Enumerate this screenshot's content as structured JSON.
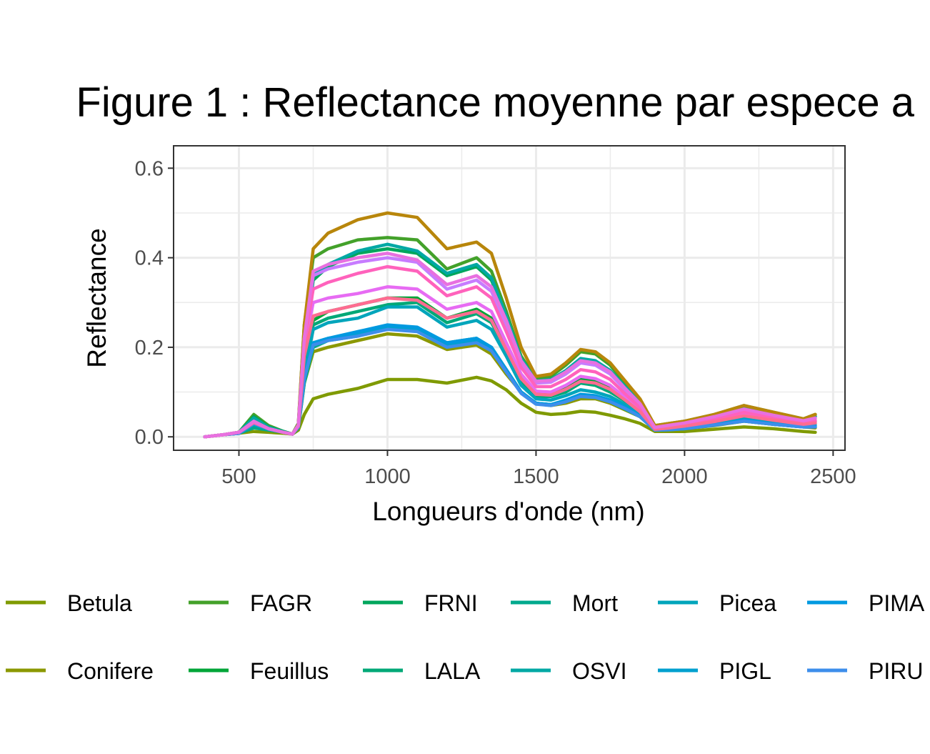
{
  "chart_data": {
    "type": "line",
    "title": "Figure 1 : Reflectance moyenne par espece a",
    "xlabel": "Longueurs d'onde (nm)",
    "ylabel": "Reflectance",
    "xlim": [
      280,
      2540
    ],
    "ylim": [
      -0.03,
      0.65
    ],
    "xticks": [
      500,
      1000,
      1500,
      2000,
      2500
    ],
    "xtick_labels": [
      "500",
      "1000",
      "1500",
      "2000",
      "2500"
    ],
    "yticks": [
      0.0,
      0.2,
      0.4,
      0.6
    ],
    "ytick_labels": [
      "0.0",
      "0.2",
      "0.4",
      "0.6"
    ],
    "grid": true,
    "legend_position": "bottom",
    "x": [
      385,
      450,
      500,
      550,
      600,
      650,
      680,
      700,
      720,
      750,
      800,
      900,
      1000,
      1100,
      1200,
      1300,
      1350,
      1400,
      1450,
      1500,
      1550,
      1600,
      1650,
      1700,
      1750,
      1800,
      1850,
      1900,
      1950,
      2000,
      2100,
      2200,
      2300,
      2400,
      2440
    ],
    "series": [
      {
        "name": "Betula",
        "color": "#7F9A00",
        "values": [
          0.0,
          0.005,
          0.008,
          0.012,
          0.01,
          0.008,
          0.006,
          0.015,
          0.05,
          0.085,
          0.095,
          0.108,
          0.128,
          0.128,
          0.12,
          0.133,
          0.125,
          0.105,
          0.075,
          0.055,
          0.05,
          0.052,
          0.057,
          0.055,
          0.048,
          0.04,
          0.03,
          0.012,
          0.012,
          0.012,
          0.017,
          0.022,
          0.018,
          0.012,
          0.01
        ]
      },
      {
        "name": "Conifere",
        "color": "#8B9800",
        "values": [
          0.0,
          0.005,
          0.008,
          0.025,
          0.015,
          0.01,
          0.006,
          0.02,
          0.12,
          0.19,
          0.2,
          0.215,
          0.23,
          0.225,
          0.195,
          0.205,
          0.185,
          0.14,
          0.1,
          0.075,
          0.07,
          0.075,
          0.085,
          0.085,
          0.075,
          0.06,
          0.045,
          0.015,
          0.015,
          0.018,
          0.025,
          0.035,
          0.028,
          0.022,
          0.02
        ]
      },
      {
        "name": "FAGR",
        "color": "#43A12A",
        "values": [
          0.0,
          0.005,
          0.01,
          0.05,
          0.025,
          0.012,
          0.006,
          0.03,
          0.25,
          0.4,
          0.42,
          0.44,
          0.445,
          0.44,
          0.375,
          0.4,
          0.37,
          0.28,
          0.18,
          0.13,
          0.135,
          0.16,
          0.19,
          0.185,
          0.16,
          0.12,
          0.08,
          0.025,
          0.03,
          0.035,
          0.05,
          0.07,
          0.055,
          0.04,
          0.05
        ]
      },
      {
        "name": "Feuillus",
        "color": "#00A538",
        "values": [
          0.0,
          0.005,
          0.01,
          0.04,
          0.02,
          0.01,
          0.006,
          0.025,
          0.16,
          0.26,
          0.28,
          0.295,
          0.31,
          0.31,
          0.265,
          0.285,
          0.265,
          0.2,
          0.13,
          0.095,
          0.095,
          0.11,
          0.13,
          0.125,
          0.11,
          0.085,
          0.06,
          0.02,
          0.022,
          0.025,
          0.035,
          0.05,
          0.04,
          0.03,
          0.035
        ]
      },
      {
        "name": "FRNI",
        "color": "#00A65C",
        "values": [
          0.0,
          0.005,
          0.01,
          0.045,
          0.022,
          0.012,
          0.006,
          0.028,
          0.2,
          0.35,
          0.38,
          0.41,
          0.42,
          0.41,
          0.36,
          0.38,
          0.35,
          0.27,
          0.17,
          0.12,
          0.125,
          0.145,
          0.17,
          0.165,
          0.145,
          0.11,
          0.075,
          0.022,
          0.026,
          0.03,
          0.045,
          0.062,
          0.05,
          0.036,
          0.045
        ]
      },
      {
        "name": "LALA",
        "color": "#00A877",
        "values": [
          0.0,
          0.005,
          0.01,
          0.038,
          0.02,
          0.01,
          0.006,
          0.024,
          0.15,
          0.25,
          0.265,
          0.28,
          0.295,
          0.3,
          0.255,
          0.275,
          0.255,
          0.195,
          0.125,
          0.09,
          0.09,
          0.1,
          0.12,
          0.115,
          0.1,
          0.08,
          0.055,
          0.018,
          0.02,
          0.022,
          0.032,
          0.045,
          0.036,
          0.028,
          0.03
        ]
      },
      {
        "name": "Mort",
        "color": "#00A98D",
        "values": [
          0.0,
          0.005,
          0.008,
          0.02,
          0.015,
          0.01,
          0.006,
          0.02,
          0.12,
          0.2,
          0.215,
          0.225,
          0.245,
          0.24,
          0.21,
          0.22,
          0.2,
          0.15,
          0.1,
          0.075,
          0.072,
          0.08,
          0.09,
          0.088,
          0.078,
          0.062,
          0.045,
          0.015,
          0.016,
          0.018,
          0.026,
          0.035,
          0.028,
          0.022,
          0.022
        ]
      },
      {
        "name": "OSVI",
        "color": "#00A8A4",
        "values": [
          0.0,
          0.005,
          0.01,
          0.042,
          0.021,
          0.011,
          0.006,
          0.026,
          0.2,
          0.36,
          0.385,
          0.415,
          0.43,
          0.415,
          0.365,
          0.385,
          0.355,
          0.27,
          0.175,
          0.125,
          0.128,
          0.148,
          0.175,
          0.17,
          0.148,
          0.112,
          0.076,
          0.022,
          0.027,
          0.032,
          0.046,
          0.064,
          0.05,
          0.037,
          0.046
        ]
      },
      {
        "name": "Picea",
        "color": "#00A5BB",
        "values": [
          0.0,
          0.005,
          0.008,
          0.03,
          0.018,
          0.01,
          0.006,
          0.022,
          0.14,
          0.24,
          0.255,
          0.265,
          0.29,
          0.29,
          0.245,
          0.26,
          0.24,
          0.18,
          0.115,
          0.085,
          0.082,
          0.092,
          0.105,
          0.1,
          0.09,
          0.072,
          0.05,
          0.016,
          0.018,
          0.02,
          0.03,
          0.04,
          0.032,
          0.025,
          0.026
        ]
      },
      {
        "name": "PIGL",
        "color": "#00A0CF",
        "values": [
          0.0,
          0.005,
          0.008,
          0.028,
          0.017,
          0.01,
          0.006,
          0.022,
          0.13,
          0.21,
          0.22,
          0.23,
          0.245,
          0.24,
          0.205,
          0.215,
          0.198,
          0.15,
          0.1,
          0.075,
          0.072,
          0.08,
          0.092,
          0.09,
          0.08,
          0.064,
          0.046,
          0.015,
          0.016,
          0.018,
          0.026,
          0.036,
          0.028,
          0.022,
          0.022
        ]
      },
      {
        "name": "PIMA",
        "color": "#0099E0",
        "values": [
          0.0,
          0.005,
          0.008,
          0.03,
          0.018,
          0.01,
          0.006,
          0.022,
          0.13,
          0.21,
          0.22,
          0.235,
          0.25,
          0.245,
          0.21,
          0.22,
          0.2,
          0.15,
          0.1,
          0.075,
          0.072,
          0.082,
          0.095,
          0.092,
          0.082,
          0.066,
          0.047,
          0.015,
          0.017,
          0.019,
          0.027,
          0.037,
          0.029,
          0.023,
          0.024
        ]
      },
      {
        "name": "PIRU",
        "color": "#3D8EEB",
        "values": [
          0.0,
          0.005,
          0.008,
          0.03,
          0.018,
          0.01,
          0.006,
          0.022,
          0.13,
          0.205,
          0.215,
          0.225,
          0.24,
          0.235,
          0.2,
          0.21,
          0.192,
          0.145,
          0.097,
          0.073,
          0.07,
          0.078,
          0.09,
          0.088,
          0.078,
          0.063,
          0.045,
          0.015,
          0.016,
          0.018,
          0.026,
          0.035,
          0.028,
          0.022,
          0.022
        ]
      },
      {
        "name": "",
        "color": "#B8860B",
        "values": [
          0.0,
          0.005,
          0.01,
          0.035,
          0.018,
          0.01,
          0.006,
          0.028,
          0.25,
          0.42,
          0.455,
          0.485,
          0.5,
          0.49,
          0.42,
          0.435,
          0.41,
          0.31,
          0.2,
          0.135,
          0.14,
          0.165,
          0.195,
          0.19,
          0.165,
          0.125,
          0.085,
          0.025,
          0.03,
          0.035,
          0.05,
          0.07,
          0.055,
          0.04,
          0.05
        ]
      },
      {
        "name": "",
        "color": "#C77CFF",
        "values": [
          0.0,
          0.005,
          0.01,
          0.035,
          0.018,
          0.01,
          0.006,
          0.026,
          0.22,
          0.36,
          0.375,
          0.39,
          0.4,
          0.39,
          0.33,
          0.35,
          0.325,
          0.25,
          0.165,
          0.12,
          0.122,
          0.14,
          0.165,
          0.16,
          0.14,
          0.105,
          0.072,
          0.02,
          0.025,
          0.03,
          0.043,
          0.06,
          0.047,
          0.035,
          0.04
        ]
      },
      {
        "name": "",
        "color": "#E76BF3",
        "values": [
          0.0,
          0.005,
          0.01,
          0.033,
          0.018,
          0.01,
          0.006,
          0.025,
          0.2,
          0.3,
          0.31,
          0.32,
          0.335,
          0.33,
          0.285,
          0.3,
          0.28,
          0.21,
          0.14,
          0.102,
          0.1,
          0.115,
          0.135,
          0.13,
          0.115,
          0.088,
          0.06,
          0.018,
          0.021,
          0.025,
          0.036,
          0.05,
          0.04,
          0.03,
          0.033
        ]
      },
      {
        "name": "",
        "color": "#FF62BC",
        "values": [
          0.0,
          0.005,
          0.01,
          0.034,
          0.018,
          0.01,
          0.006,
          0.025,
          0.21,
          0.33,
          0.345,
          0.365,
          0.38,
          0.37,
          0.315,
          0.335,
          0.31,
          0.235,
          0.155,
          0.112,
          0.112,
          0.128,
          0.15,
          0.145,
          0.128,
          0.096,
          0.065,
          0.019,
          0.023,
          0.027,
          0.04,
          0.055,
          0.043,
          0.032,
          0.036
        ]
      },
      {
        "name": "",
        "color": "#FF6C91",
        "values": [
          0.0,
          0.005,
          0.01,
          0.032,
          0.018,
          0.01,
          0.006,
          0.024,
          0.18,
          0.27,
          0.28,
          0.295,
          0.31,
          0.305,
          0.265,
          0.28,
          0.26,
          0.195,
          0.13,
          0.095,
          0.093,
          0.106,
          0.124,
          0.12,
          0.106,
          0.082,
          0.056,
          0.017,
          0.02,
          0.024,
          0.034,
          0.047,
          0.037,
          0.028,
          0.031
        ]
      },
      {
        "name": "",
        "color": "#E870E0",
        "values": [
          0.0,
          0.005,
          0.01,
          0.034,
          0.018,
          0.01,
          0.006,
          0.026,
          0.22,
          0.37,
          0.385,
          0.4,
          0.41,
          0.395,
          0.34,
          0.36,
          0.335,
          0.26,
          0.17,
          0.124,
          0.126,
          0.145,
          0.17,
          0.165,
          0.145,
          0.108,
          0.074,
          0.021,
          0.026,
          0.031,
          0.045,
          0.062,
          0.048,
          0.036,
          0.042
        ]
      }
    ],
    "legend": [
      [
        "Betula",
        "FAGR",
        "FRNI",
        "Mort",
        "Picea",
        "PIMA"
      ],
      [
        "Conifere",
        "Feuillus",
        "LALA",
        "OSVI",
        "PIGL",
        "PIRU"
      ]
    ]
  }
}
